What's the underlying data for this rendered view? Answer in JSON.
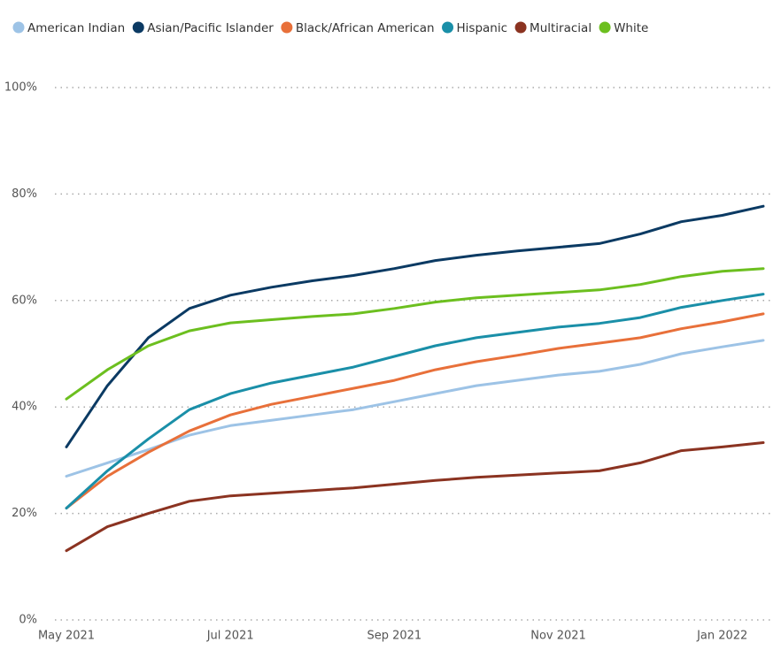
{
  "chart_data": {
    "type": "line",
    "categories": [
      "May 2021",
      null,
      null,
      null,
      "Jul 2021",
      null,
      null,
      null,
      "Sep 2021",
      null,
      null,
      null,
      "Nov 2021",
      null,
      null,
      null,
      "Jan 2022",
      null
    ],
    "series": [
      {
        "name": "American Indian",
        "color": "#9dc3e6",
        "values": [
          27,
          29.5,
          32,
          34.7,
          36.5,
          37.5,
          38.5,
          39.5,
          41,
          42.5,
          44,
          45,
          46,
          46.7,
          48,
          50,
          51.3,
          52.5
        ]
      },
      {
        "name": "Asian/Pacific Islander",
        "color": "#0b3a63",
        "values": [
          32.5,
          44,
          53,
          58.5,
          61,
          62.5,
          63.7,
          64.7,
          66,
          67.5,
          68.5,
          69.3,
          70,
          70.7,
          72.5,
          74.8,
          76,
          77.7
        ]
      },
      {
        "name": "Black/African American",
        "color": "#e8703a",
        "values": [
          21,
          27,
          31.5,
          35.5,
          38.5,
          40.5,
          42,
          43.5,
          45,
          47,
          48.5,
          49.7,
          51,
          52,
          53,
          54.7,
          56,
          57.5
        ]
      },
      {
        "name": "Hispanic",
        "color": "#1a8fa8",
        "values": [
          21,
          28,
          34,
          39.5,
          42.5,
          44.5,
          46,
          47.5,
          49.5,
          51.5,
          53,
          54,
          55,
          55.7,
          56.8,
          58.7,
          60,
          61.2
        ]
      },
      {
        "name": "Multiracial",
        "color": "#8b3321",
        "values": [
          13,
          17.5,
          20,
          22.3,
          23.3,
          23.8,
          24.3,
          24.8,
          25.5,
          26.2,
          26.8,
          27.2,
          27.6,
          28,
          29.5,
          31.8,
          32.5,
          33.3
        ]
      },
      {
        "name": "White",
        "color": "#6cbf1f",
        "values": [
          41.5,
          47,
          51.5,
          54.3,
          55.8,
          56.4,
          57,
          57.5,
          58.5,
          59.7,
          60.5,
          61,
          61.5,
          62,
          63,
          64.5,
          65.5,
          66
        ]
      }
    ],
    "ylim": [
      0,
      100
    ],
    "yticks": [
      {
        "value": 0,
        "label": "0%"
      },
      {
        "value": 20,
        "label": "20%"
      },
      {
        "value": 40,
        "label": "40%"
      },
      {
        "value": 60,
        "label": "60%"
      },
      {
        "value": 80,
        "label": "80%"
      },
      {
        "value": 100,
        "label": "100%"
      }
    ],
    "grid": true
  }
}
